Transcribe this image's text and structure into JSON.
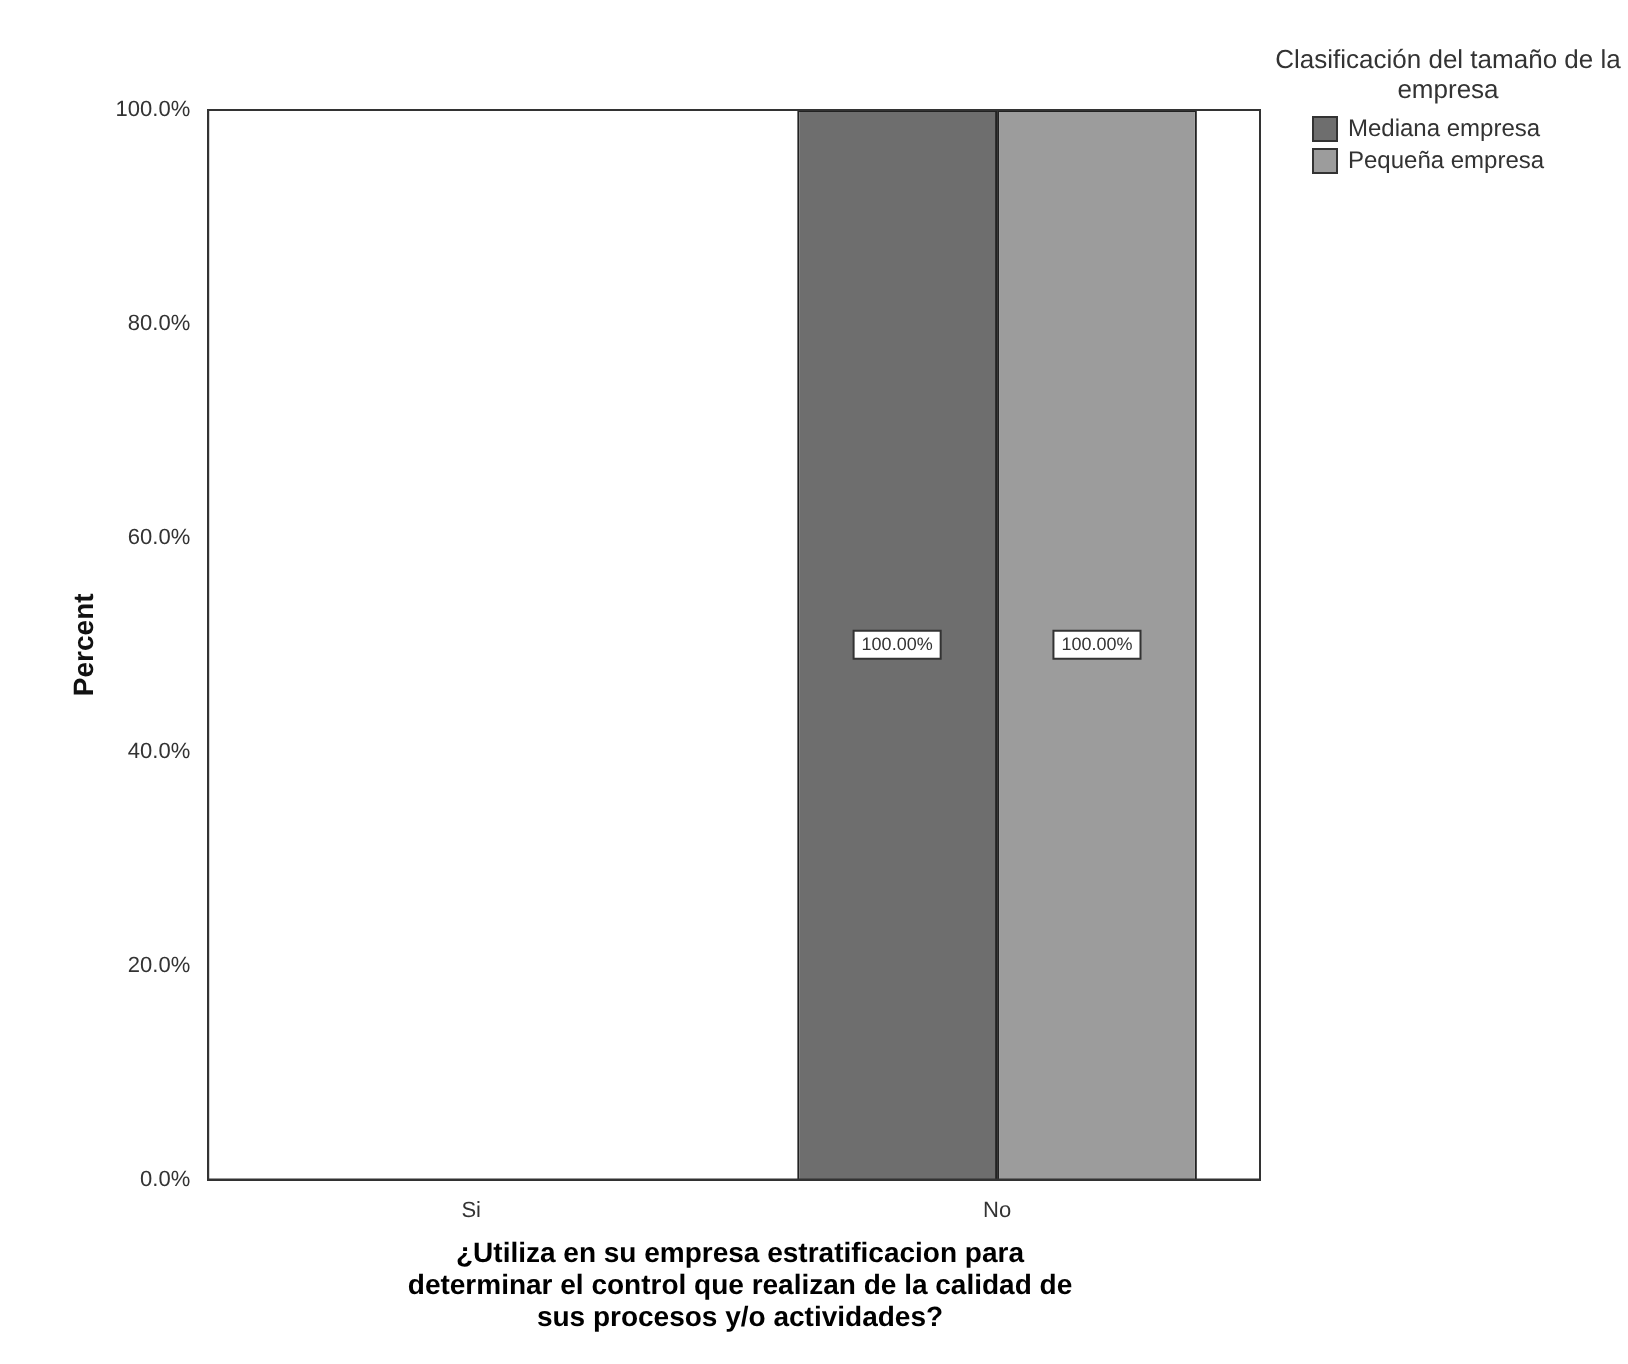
{
  "chart_data": {
    "type": "bar",
    "categories": [
      "Si",
      "No"
    ],
    "series": [
      {
        "name": "Mediana empresa",
        "color": "#6e6e6e",
        "values": [
          0,
          100
        ],
        "value_labels": [
          null,
          "100.00%"
        ]
      },
      {
        "name": "Pequeña empresa",
        "color": "#9c9c9c",
        "values": [
          0,
          100
        ],
        "value_labels": [
          null,
          "100.00%"
        ]
      }
    ],
    "xlabel": "¿Utiliza en su empresa estratificacion para determinar el control que realizan de la calidad de sus procesos y/o actividades?",
    "ylabel": "Percent",
    "legend_title": "Clasificación del tamaño de la empresa",
    "legend": "top right",
    "ylim": [
      0,
      100
    ],
    "yticks": [
      {
        "value": 0,
        "label": "0.0%"
      },
      {
        "value": 20,
        "label": "20.0%"
      },
      {
        "value": 40,
        "label": "40.0%"
      },
      {
        "value": 60,
        "label": "60.0%"
      },
      {
        "value": 80,
        "label": "80.0%"
      },
      {
        "value": 100,
        "label": "100.0%"
      }
    ],
    "grid": false
  }
}
